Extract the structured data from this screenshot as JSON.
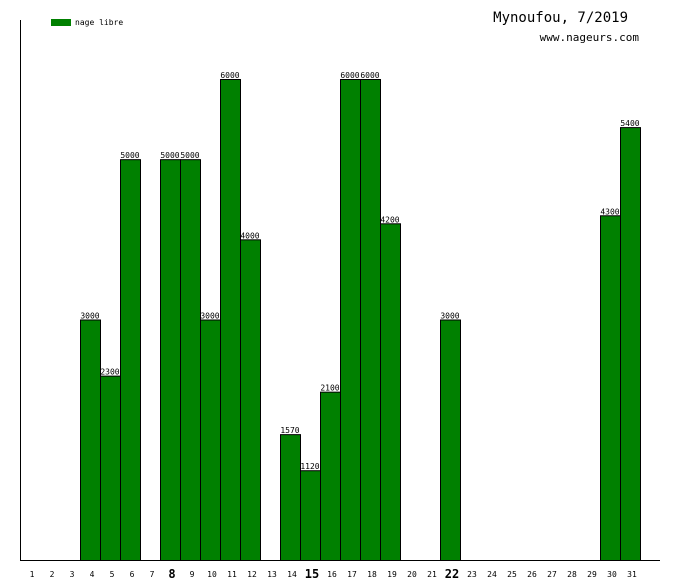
{
  "chart_data": {
    "type": "bar",
    "title": "Mynoufou, 7/2019",
    "site": "www.nageurs.com",
    "legend_position": "top-left",
    "bar_color": "#008000",
    "ylim": [
      0,
      6000
    ],
    "categories": [
      "1",
      "2",
      "3",
      "4",
      "5",
      "6",
      "7",
      "8",
      "9",
      "10",
      "11",
      "12",
      "13",
      "14",
      "15",
      "16",
      "17",
      "18",
      "19",
      "20",
      "21",
      "22",
      "23",
      "24",
      "25",
      "26",
      "27",
      "28",
      "29",
      "30",
      "31"
    ],
    "bold_categories": [
      "8",
      "15",
      "22"
    ],
    "series": [
      {
        "name": "nage libre",
        "values": [
          0,
          0,
          0,
          3000,
          2300,
          5000,
          0,
          5000,
          5000,
          3000,
          6000,
          4000,
          0,
          1570,
          1120,
          2100,
          6000,
          6000,
          4200,
          0,
          0,
          3000,
          0,
          0,
          0,
          0,
          0,
          0,
          0,
          4300,
          5400
        ]
      }
    ]
  }
}
